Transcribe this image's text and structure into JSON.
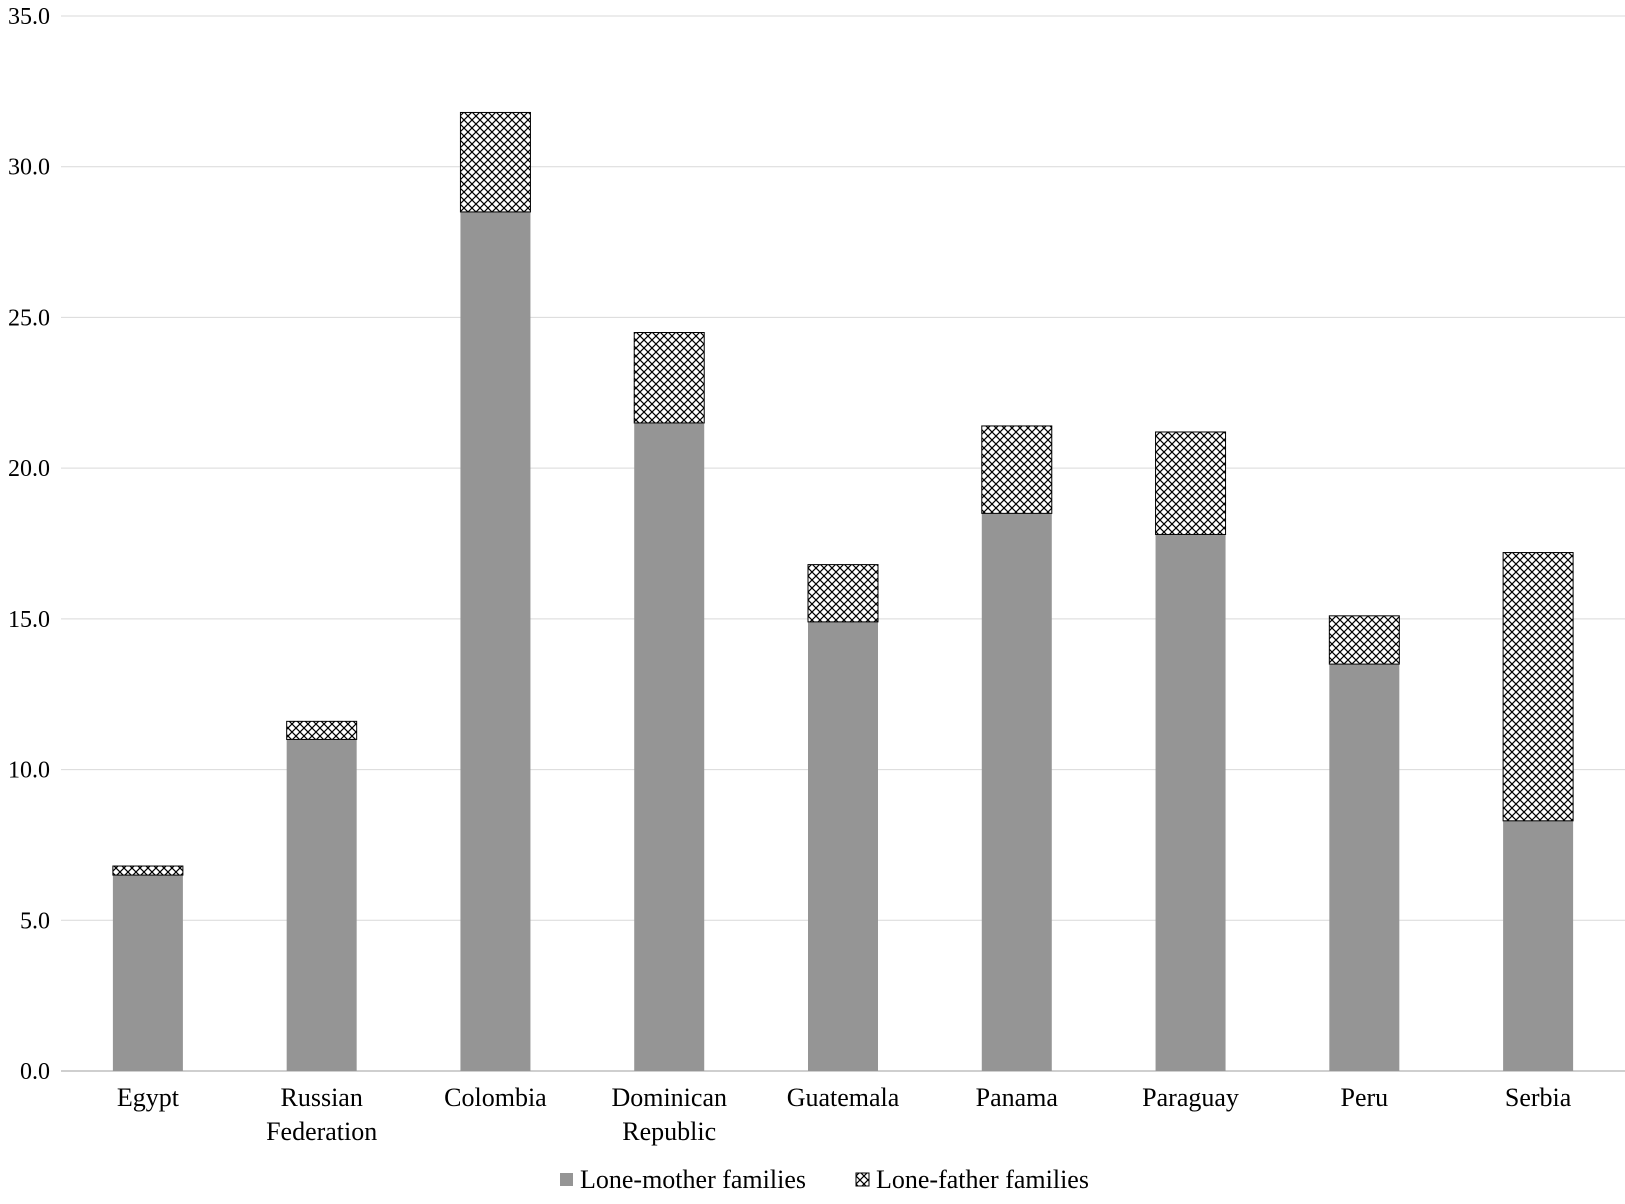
{
  "chart_data": {
    "type": "bar",
    "stacked": true,
    "categories": [
      [
        "Egypt"
      ],
      [
        "Russian",
        "Federation"
      ],
      [
        "Colombia"
      ],
      [
        "Dominican",
        "Republic"
      ],
      [
        "Guatemala"
      ],
      [
        "Panama"
      ],
      [
        "Paraguay"
      ],
      [
        "Peru"
      ],
      [
        "Serbia"
      ]
    ],
    "series": [
      {
        "name": "Lone-mother families",
        "pattern": "solid",
        "color": "#959595",
        "values": [
          6.5,
          11.0,
          28.5,
          21.5,
          14.9,
          18.5,
          17.8,
          13.5,
          8.3
        ]
      },
      {
        "name": "Lone-father families",
        "pattern": "crosshatch",
        "color": "#000000",
        "values": [
          0.3,
          0.6,
          3.3,
          3.0,
          1.9,
          2.9,
          3.4,
          1.6,
          8.9
        ]
      }
    ],
    "ylim": [
      0,
      35
    ],
    "yticks": [
      "0.0",
      "5.0",
      "10.0",
      "15.0",
      "20.0",
      "25.0",
      "30.0",
      "35.0"
    ],
    "ytick_values": [
      0,
      5,
      10,
      15,
      20,
      25,
      30,
      35
    ],
    "grid": true,
    "legend_position": "bottom-center",
    "title": "",
    "xlabel": "",
    "ylabel": ""
  }
}
